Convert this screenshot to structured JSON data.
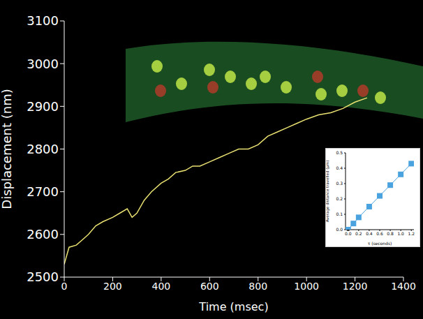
{
  "chart_data": [
    {
      "type": "line",
      "x_label": "Time (msec)",
      "y_label": "Displacement (nm)",
      "x": [
        0,
        20,
        50,
        80,
        100,
        130,
        160,
        200,
        230,
        260,
        280,
        300,
        330,
        360,
        400,
        430,
        460,
        500,
        530,
        560,
        600,
        640,
        680,
        720,
        760,
        800,
        840,
        880,
        920,
        960,
        1000,
        1050,
        1100,
        1150,
        1200,
        1250
      ],
      "series": [
        {
          "color": "#e8e070",
          "values": [
            2530,
            2570,
            2575,
            2590,
            2600,
            2620,
            2630,
            2640,
            2650,
            2660,
            2640,
            2650,
            2680,
            2700,
            2720,
            2730,
            2745,
            2750,
            2760,
            2760,
            2770,
            2780,
            2790,
            2800,
            2800,
            2810,
            2830,
            2840,
            2850,
            2860,
            2870,
            2880,
            2885,
            2895,
            2910,
            2920
          ]
        }
      ],
      "xlim": [
        0,
        1400
      ],
      "xticks": [
        0,
        200,
        400,
        600,
        800,
        1000,
        1200,
        1400
      ],
      "ylim": [
        2500,
        3100
      ],
      "yticks": [
        2500,
        2600,
        2700,
        2800,
        2900,
        3000,
        3100
      ],
      "grid": false
    },
    {
      "type": "scatter",
      "x_label": "τ (seconds)",
      "y_label": "Average distance travelled (µm)",
      "x": [
        0,
        0.1,
        0.2,
        0.4,
        0.6,
        0.8,
        1.0,
        1.2
      ],
      "series": [
        {
          "color": "#4aa3df",
          "marker": "square",
          "line_style": "solid",
          "values": [
            0.0,
            0.04,
            0.08,
            0.15,
            0.22,
            0.29,
            0.36,
            0.43
          ],
          "errors": [
            0.004,
            0.004,
            0.005,
            0.005,
            0.006,
            0.007,
            0.008,
            0.01
          ]
        }
      ],
      "xlim": [
        -0.05,
        1.25
      ],
      "xticks": [
        {
          "value": 0,
          "label": "0.0"
        },
        0.2,
        0.4,
        0.6,
        0.8,
        {
          "value": 1,
          "label": "1.0"
        },
        1.2
      ],
      "ylim": [
        0,
        0.5
      ],
      "yticks": [
        {
          "value": 0,
          "label": "0.0"
        },
        0.1,
        0.2,
        0.3,
        0.4,
        0.5
      ],
      "grid": false
    }
  ]
}
